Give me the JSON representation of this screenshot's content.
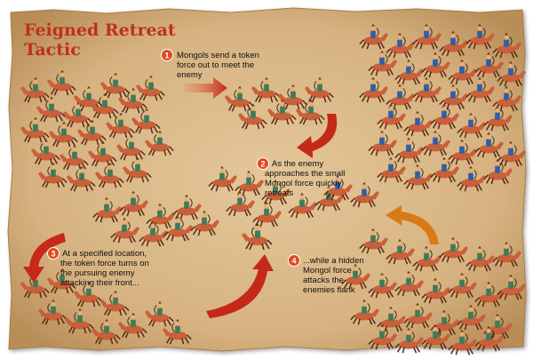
{
  "title": {
    "line1": "Feigned Retreat",
    "line2": "Tactic"
  },
  "colors": {
    "parchment": "#d9b98a",
    "title_red": "#c0301c",
    "badge_red": "#e2481f",
    "arrow_red": "#c42a17",
    "arrow_orange": "#d87a18",
    "mongol_rider": "#3e7b5a",
    "enemy_rider": "#2f5fa6",
    "horse": "#c9603a"
  },
  "steps": [
    {
      "number": "1",
      "lines": [
        "Mongols send a token",
        "force out to meet the",
        "enemy"
      ]
    },
    {
      "number": "2",
      "lines": [
        "As the enemy",
        "approaches the small",
        "Mongol force quickly",
        "retreats"
      ]
    },
    {
      "number": "3",
      "lines": [
        "At a specified location,",
        "the token force turns on",
        "the pursuing enemy",
        "attacking their front..."
      ]
    },
    {
      "number": "4",
      "lines": [
        "...while a hidden",
        "Mongol force",
        "attacks the",
        "enemies flank"
      ]
    }
  ]
}
